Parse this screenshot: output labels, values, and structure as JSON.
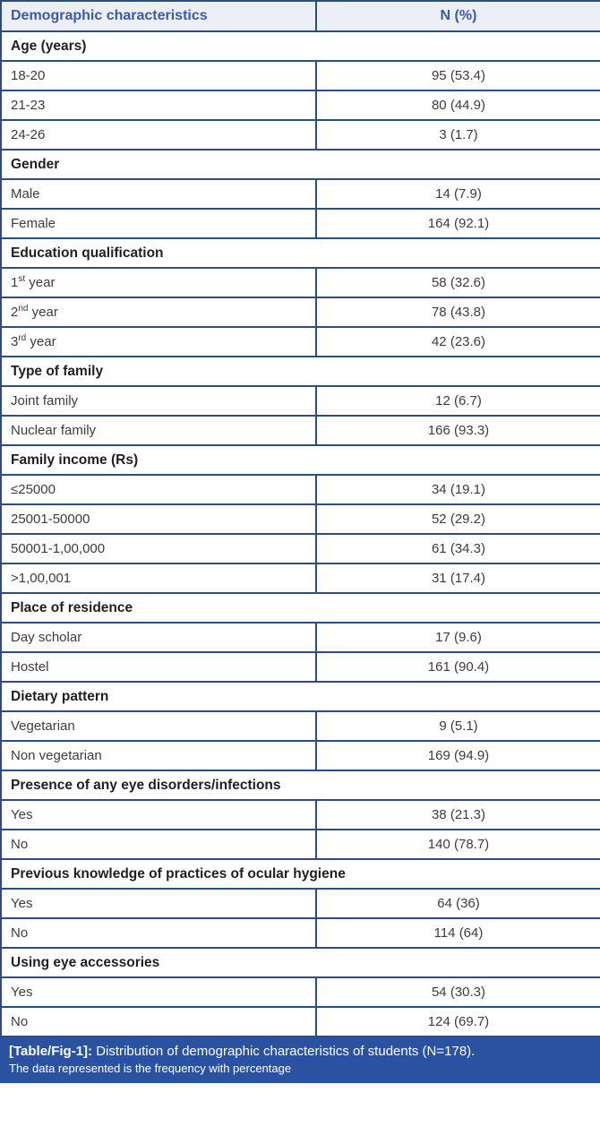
{
  "colors": {
    "border": "#2e4d7c",
    "header_bg": "#edeff8",
    "header_text": "#3b5aa9",
    "section_text": "#1f1f1f",
    "body_text": "#3c3c3c",
    "caption_bg": "#2a52a0",
    "caption_text": "#ffffff"
  },
  "table": {
    "header": {
      "col1": "Demographic characteristics",
      "col2": "N (%)"
    },
    "sections": [
      {
        "title": "Age (years)",
        "rows": [
          {
            "label": "18-20",
            "value": "95 (53.4)"
          },
          {
            "label": "21-23",
            "value": "80 (44.9)"
          },
          {
            "label": "24-26",
            "value": "3 (1.7)"
          }
        ]
      },
      {
        "title": "Gender",
        "rows": [
          {
            "label": "Male",
            "value": "14 (7.9)"
          },
          {
            "label": "Female",
            "value": "164 (92.1)"
          }
        ]
      },
      {
        "title": "Education qualification",
        "rows": [
          {
            "segments": [
              {
                "text": "1"
              },
              {
                "text": "st",
                "sup": true
              },
              {
                "text": " year"
              }
            ],
            "value": "58 (32.6)"
          },
          {
            "segments": [
              {
                "text": "2"
              },
              {
                "text": "nd",
                "sup": true
              },
              {
                "text": " year"
              }
            ],
            "value": "78 (43.8)"
          },
          {
            "segments": [
              {
                "text": "3"
              },
              {
                "text": "rd",
                "sup": true
              },
              {
                "text": " year"
              }
            ],
            "value": "42 (23.6)"
          }
        ]
      },
      {
        "title": "Type of family",
        "rows": [
          {
            "label": "Joint family",
            "value": "12 (6.7)"
          },
          {
            "label": "Nuclear family",
            "value": "166 (93.3)"
          }
        ]
      },
      {
        "title": "Family income (Rs)",
        "rows": [
          {
            "label": "≤25000",
            "value": "34 (19.1)"
          },
          {
            "label": "25001-50000",
            "value": "52 (29.2)"
          },
          {
            "label": "50001-1,00,000",
            "value": "61 (34.3)"
          },
          {
            "label": ">1,00,001",
            "value": "31 (17.4)"
          }
        ]
      },
      {
        "title": "Place of residence",
        "rows": [
          {
            "label": "Day scholar",
            "value": "17 (9.6)"
          },
          {
            "label": "Hostel",
            "value": "161 (90.4)"
          }
        ]
      },
      {
        "title": "Dietary pattern",
        "rows": [
          {
            "label": "Vegetarian",
            "value": "9 (5.1)"
          },
          {
            "label": "Non vegetarian",
            "value": "169 (94.9)"
          }
        ]
      },
      {
        "title": "Presence of any eye disorders/infections",
        "rows": [
          {
            "label": "Yes",
            "value": "38 (21.3)"
          },
          {
            "label": "No",
            "value": "140 (78.7)"
          }
        ]
      },
      {
        "title": "Previous knowledge of practices of ocular hygiene",
        "rows": [
          {
            "label": "Yes",
            "value": "64 (36)"
          },
          {
            "label": "No",
            "value": "114 (64)"
          }
        ]
      },
      {
        "title": "Using eye accessories",
        "rows": [
          {
            "label": "Yes",
            "value": "54 (30.3)"
          },
          {
            "label": "No",
            "value": "124 (69.7)"
          }
        ]
      }
    ]
  },
  "caption": {
    "label": "[Table/Fig-1]:",
    "text": "Distribution of demographic characteristics of students (N=178).",
    "subtext": "The data represented is the frequency with percentage"
  }
}
